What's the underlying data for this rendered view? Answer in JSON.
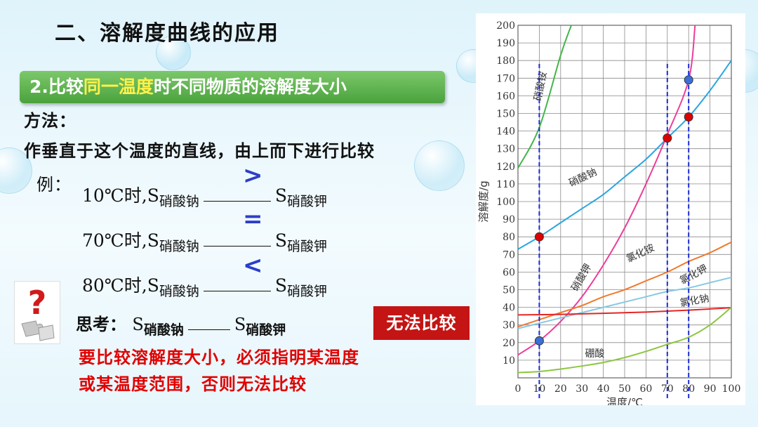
{
  "slide": {
    "title": "二、溶解度曲线的应用",
    "banner": {
      "pre": "2.比较",
      "highlight": "同一温度",
      "post": "时不同物质的溶解度大小"
    },
    "method_label": "方法：",
    "method_text": "作垂直于这个温度的直线，由上而下进行比较",
    "example_label": "例：",
    "examples": [
      {
        "temp": "10℃时,S",
        "a": "硝酸钠",
        "b": "硝酸钾",
        "symbol": ">"
      },
      {
        "temp": "70℃时,S",
        "a": "硝酸钠",
        "b": "硝酸钾",
        "symbol": "="
      },
      {
        "temp": "80℃时,S",
        "a": "硝酸钠",
        "b": "硝酸钾",
        "symbol": "<"
      }
    ],
    "think": {
      "label": "思考：",
      "s": "S",
      "a": "硝酸钠",
      "b": "硝酸钾",
      "answer": "无法比较"
    },
    "conclusion": [
      "要比较溶解度大小，必须指明某温度",
      "或某温度范围，否则无法比较"
    ]
  },
  "chart_data": {
    "type": "line",
    "xlabel": "温度/℃",
    "ylabel": "溶解度/g",
    "xlim": [
      0,
      100
    ],
    "ylim": [
      0,
      200
    ],
    "xticks": [
      0,
      10,
      20,
      30,
      40,
      50,
      60,
      70,
      80,
      90,
      100
    ],
    "yticks": [
      10,
      20,
      30,
      40,
      50,
      60,
      70,
      80,
      90,
      100,
      110,
      120,
      130,
      140,
      150,
      160,
      170,
      180,
      190,
      200
    ],
    "grid": true,
    "series": [
      {
        "name": "硝酸铵",
        "color": "#43b649",
        "x": [
          0,
          10,
          20,
          25
        ],
        "y": [
          119,
          142,
          183,
          200
        ]
      },
      {
        "name": "硝酸钠",
        "color": "#2aa6e0",
        "x": [
          0,
          10,
          20,
          30,
          40,
          50,
          60,
          70,
          80,
          90,
          100
        ],
        "y": [
          73,
          80,
          88,
          96,
          104,
          114,
          124,
          136,
          148,
          163,
          180
        ]
      },
      {
        "name": "硝酸钾",
        "color": "#ec3d9a",
        "x": [
          0,
          10,
          20,
          30,
          40,
          50,
          60,
          70,
          80,
          83
        ],
        "y": [
          13,
          21,
          32,
          46,
          64,
          85,
          110,
          138,
          169,
          200
        ]
      },
      {
        "name": "氯化铵",
        "color": "#f07a2e",
        "x": [
          0,
          10,
          20,
          30,
          40,
          50,
          60,
          70,
          80,
          90,
          100
        ],
        "y": [
          29,
          33,
          37,
          41,
          46,
          50,
          55,
          60,
          66,
          71,
          77
        ]
      },
      {
        "name": "氯化钾",
        "color": "#86c9e3",
        "x": [
          0,
          10,
          20,
          30,
          40,
          50,
          60,
          70,
          80,
          90,
          100
        ],
        "y": [
          28,
          31,
          34,
          37,
          40,
          43,
          46,
          49,
          51,
          54,
          57
        ]
      },
      {
        "name": "氯化钠",
        "color": "#e32626",
        "x": [
          0,
          20,
          40,
          60,
          80,
          100
        ],
        "y": [
          35.7,
          36,
          36.6,
          37.3,
          38.4,
          39.8
        ]
      },
      {
        "name": "硼酸",
        "color": "#8cc63f",
        "x": [
          0,
          10,
          20,
          30,
          40,
          50,
          60,
          70,
          80,
          90,
          100
        ],
        "y": [
          3,
          3.6,
          5,
          6.7,
          8.7,
          11.5,
          15,
          19,
          23,
          30,
          40
        ]
      }
    ],
    "markers": [
      {
        "x": 10,
        "y": 80,
        "color": "#e00000"
      },
      {
        "x": 10,
        "y": 21,
        "color": "#3a6fd8"
      },
      {
        "x": 70,
        "y": 136,
        "color": "#e00000"
      },
      {
        "x": 80,
        "y": 148,
        "color": "#e00000"
      },
      {
        "x": 80,
        "y": 169,
        "color": "#3a6fd8"
      }
    ],
    "vlines": [
      10,
      70,
      80
    ],
    "curve_labels": [
      {
        "text": "硝酸铵",
        "x": 12,
        "y": 165,
        "rot": -78
      },
      {
        "text": "硝酸钠",
        "x": 31,
        "y": 112,
        "rot": -25
      },
      {
        "text": "硝酸钾",
        "x": 31,
        "y": 56,
        "rot": -60
      },
      {
        "text": "氯化铵",
        "x": 58,
        "y": 69,
        "rot": -25
      },
      {
        "text": "氯化钾",
        "x": 83,
        "y": 57,
        "rot": -28
      },
      {
        "text": "氯化钠",
        "x": 83,
        "y": 42,
        "rot": -10
      },
      {
        "text": "硼酸",
        "x": 36,
        "y": 12,
        "rot": 0
      }
    ]
  }
}
